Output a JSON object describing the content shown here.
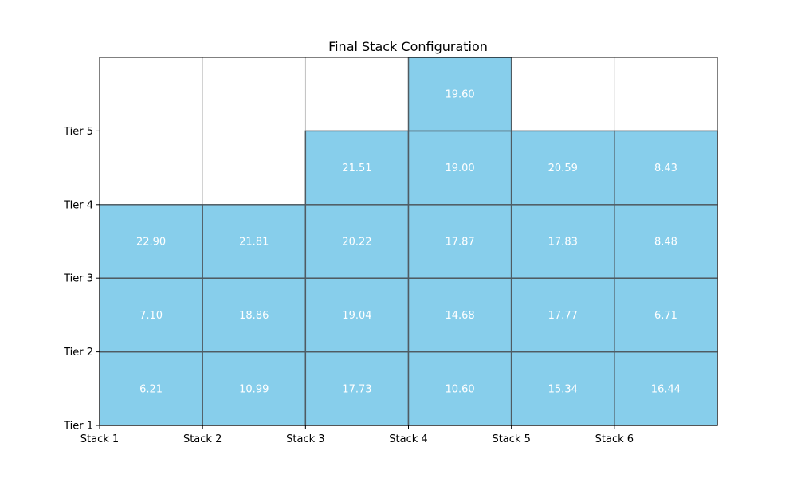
{
  "chart_data": {
    "type": "heatmap",
    "title": "Final Stack Configuration",
    "xlabel": "",
    "ylabel": "",
    "x_tick_labels": [
      "Stack 1",
      "Stack 2",
      "Stack 3",
      "Stack 4",
      "Stack 5",
      "Stack 6"
    ],
    "y_tick_labels": [
      "Tier 1",
      "Tier 2",
      "Tier 3",
      "Tier 4",
      "Tier 5"
    ],
    "xlim": [
      0,
      6
    ],
    "ylim": [
      0,
      5
    ],
    "grid": true,
    "stacks": [
      {
        "name": "Stack 1",
        "values": [
          6.21,
          7.1,
          22.9
        ]
      },
      {
        "name": "Stack 2",
        "values": [
          10.99,
          18.86,
          21.81
        ]
      },
      {
        "name": "Stack 3",
        "values": [
          17.73,
          19.04,
          20.22,
          21.51
        ]
      },
      {
        "name": "Stack 4",
        "values": [
          10.6,
          14.68,
          17.87,
          19.0,
          19.6
        ]
      },
      {
        "name": "Stack 5",
        "values": [
          15.34,
          17.77,
          17.83,
          20.59
        ]
      },
      {
        "name": "Stack 6",
        "values": [
          16.44,
          6.71,
          8.48,
          8.43
        ]
      }
    ],
    "colors": {
      "cell_fill": "#87ceeb",
      "cell_edge": "#4f5b62",
      "cell_text": "#ffffff",
      "grid": "#b0b0b0",
      "axis": "#000000"
    }
  }
}
